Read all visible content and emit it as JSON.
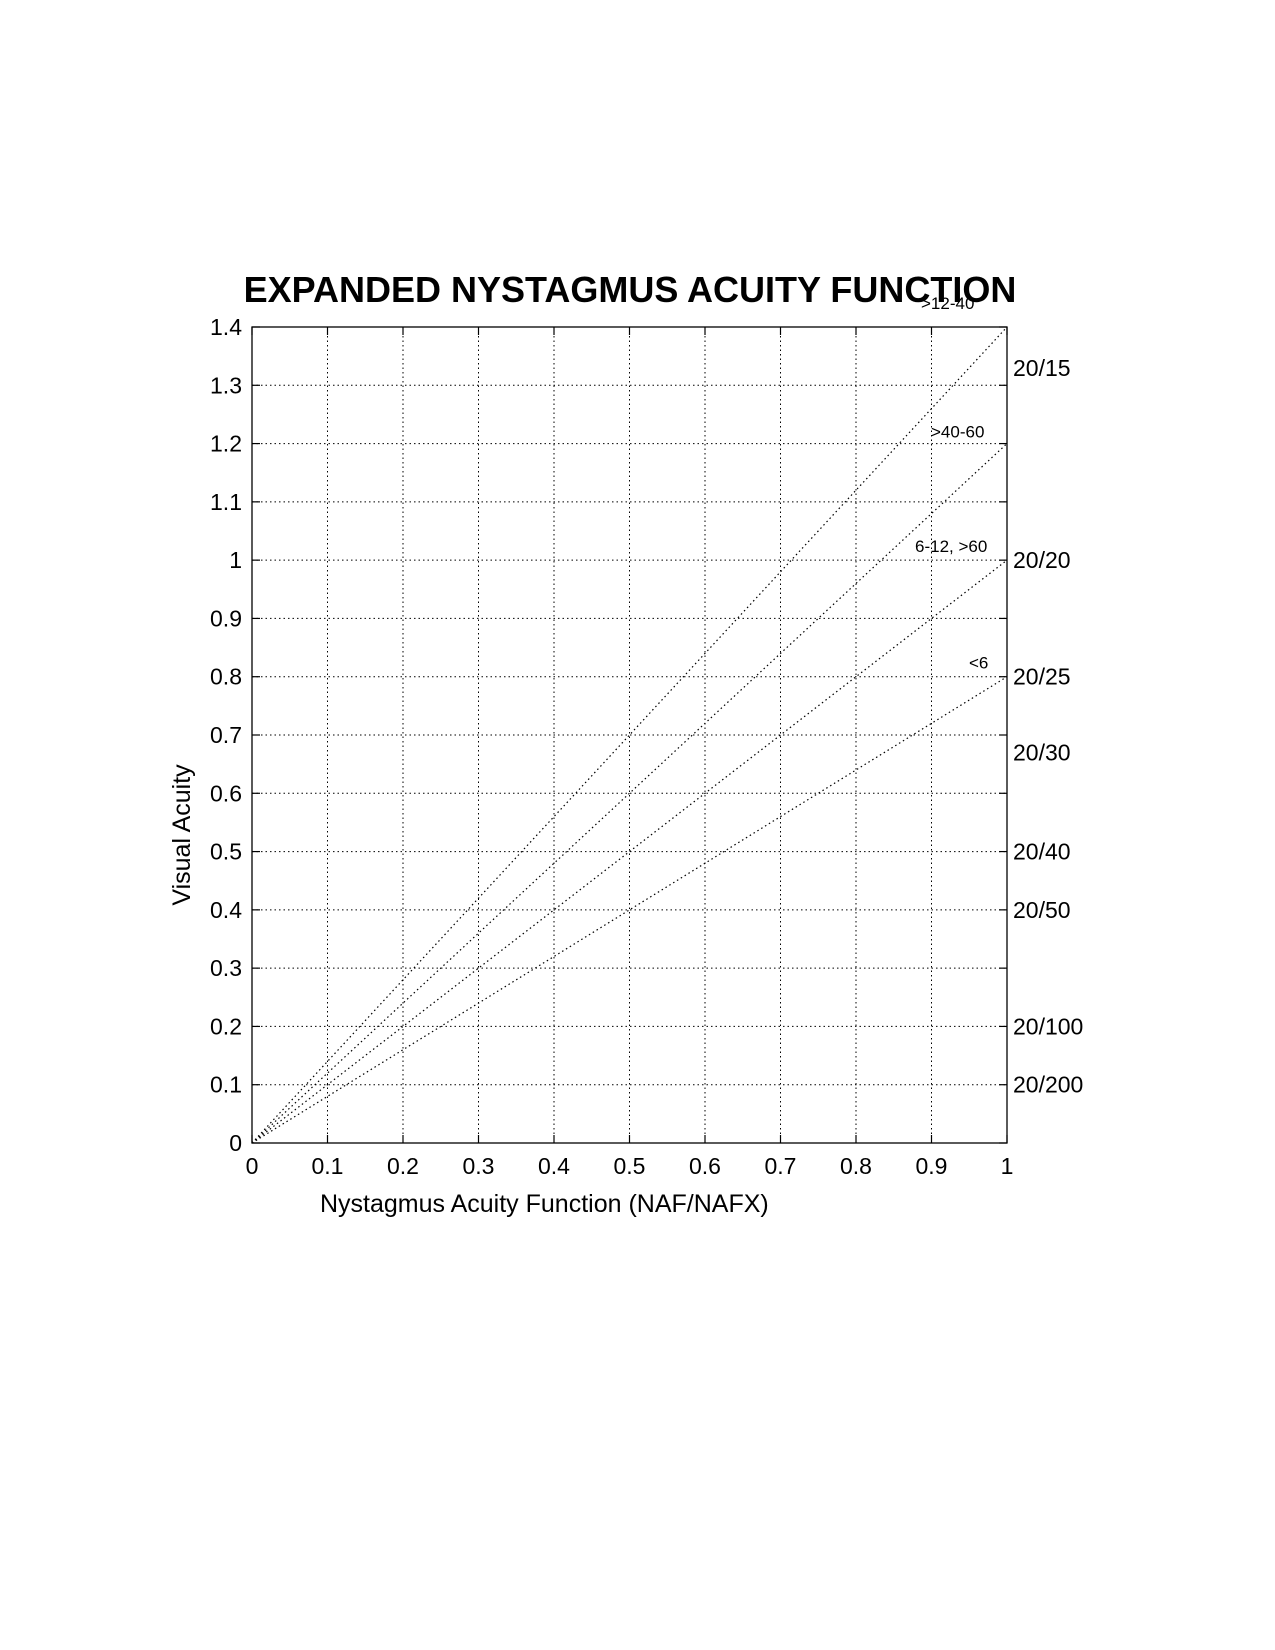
{
  "chart_data": {
    "type": "line",
    "title": "EXPANDED NYSTAGMUS ACUITY FUNCTION",
    "xlabel": "Nystagmus Acuity Function (NAF/NAFX)",
    "ylabel": "Visual Acuity",
    "xlim": [
      0,
      1
    ],
    "ylim": [
      0,
      1.4
    ],
    "xticks": [
      "0",
      "0.1",
      "0.2",
      "0.3",
      "0.4",
      "0.5",
      "0.6",
      "0.7",
      "0.8",
      "0.9",
      "1"
    ],
    "yticks": [
      "0",
      "0.1",
      "0.2",
      "0.3",
      "0.4",
      "0.5",
      "0.6",
      "0.7",
      "0.8",
      "0.9",
      "1",
      "1.1",
      "1.2",
      "1.3",
      "1.4"
    ],
    "grid": true,
    "line_style": "dotted",
    "series": [
      {
        "name": ">12-40",
        "x": [
          0,
          1
        ],
        "y": [
          0,
          1.4
        ]
      },
      {
        "name": ">40-60",
        "x": [
          0,
          1
        ],
        "y": [
          0,
          1.2
        ]
      },
      {
        "name": "6-12, >60",
        "x": [
          0,
          1
        ],
        "y": [
          0,
          1.0
        ]
      },
      {
        "name": "<6",
        "x": [
          0,
          1
        ],
        "y": [
          0,
          0.8
        ]
      }
    ],
    "right_annotations": [
      {
        "label": "20/15",
        "y": 1.33
      },
      {
        "label": "20/20",
        "y": 1.0
      },
      {
        "label": "20/25",
        "y": 0.8
      },
      {
        "label": "20/30",
        "y": 0.67
      },
      {
        "label": "20/40",
        "y": 0.5
      },
      {
        "label": "20/50",
        "y": 0.4
      },
      {
        "label": "20/100",
        "y": 0.2
      },
      {
        "label": "20/200",
        "y": 0.1
      }
    ]
  }
}
